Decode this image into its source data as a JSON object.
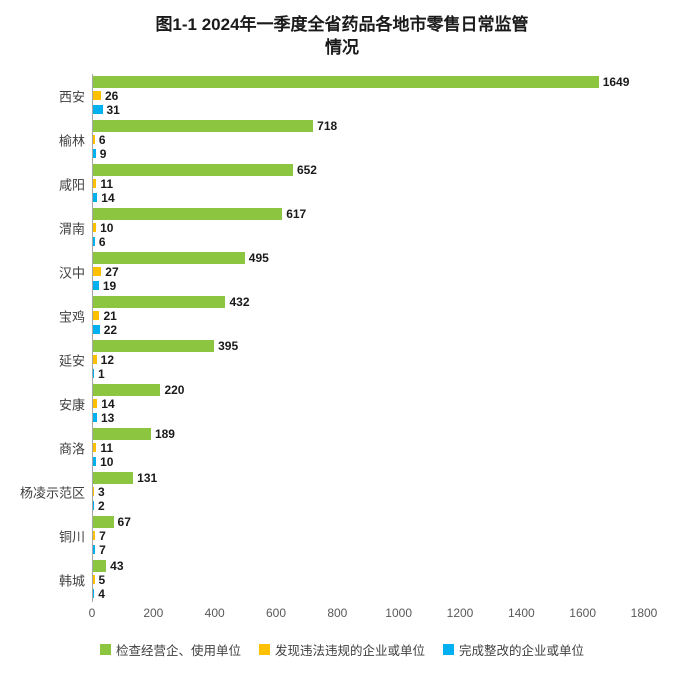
{
  "page": {
    "title_lines": [
      "图1-1  2024年一季度全省药品各地市零售日常监管",
      "情况"
    ]
  },
  "chart_data": {
    "type": "bar",
    "orientation": "horizontal",
    "title": "图1-1 2024年一季度全省药品各地市零售日常监管情况",
    "xlabel": "",
    "ylabel": "",
    "xmax": 1800,
    "xticks": [
      0,
      200,
      400,
      600,
      800,
      1000,
      1200,
      1400,
      1600,
      1800
    ],
    "grid": false,
    "legend_position": "bottom",
    "categories": [
      "西安",
      "榆林",
      "咸阳",
      "渭南",
      "汉中",
      "宝鸡",
      "延安",
      "安康",
      "商洛",
      "杨凌示范区",
      "铜川",
      "韩城"
    ],
    "series": [
      {
        "key": "inspected",
        "name": "检查经营企、使用单位",
        "color": "#8CC540",
        "values": [
          1649,
          718,
          652,
          617,
          495,
          432,
          395,
          220,
          189,
          131,
          67,
          43
        ]
      },
      {
        "key": "violations",
        "name": "发现违法违规的企业或单位",
        "color": "#FFC000",
        "values": [
          26,
          6,
          11,
          10,
          27,
          21,
          12,
          14,
          11,
          3,
          7,
          5
        ]
      },
      {
        "key": "rectified",
        "name": "完成整改的企业或单位",
        "color": "#00B0F0",
        "values": [
          31,
          9,
          14,
          6,
          19,
          22,
          1,
          13,
          10,
          2,
          7,
          4
        ]
      }
    ]
  }
}
